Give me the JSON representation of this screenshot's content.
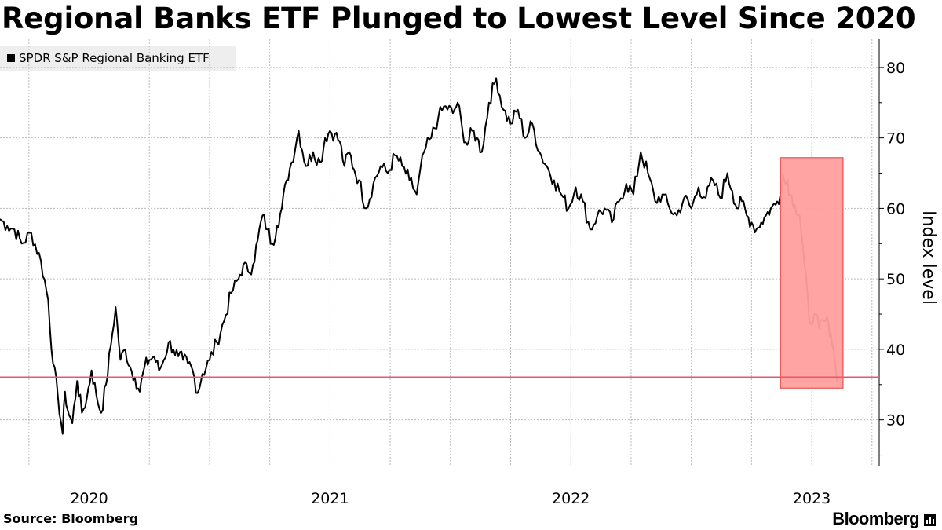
{
  "title": "Regional Banks ETF Plunged to Lowest Level Since 2020",
  "source": "Source: Bloomberg",
  "brand": "Bloomberg",
  "colors": {
    "line": "#000000",
    "threshold": "#e8566b",
    "highlight_fill": "#ff9e9e",
    "highlight_stroke": "#e03a3a",
    "grid": "#bbbbbb"
  },
  "chart_data": {
    "type": "line",
    "title": "Regional Banks ETF Plunged to Lowest Level Since 2020",
    "legend": "top-left",
    "ylabel": "Index level",
    "ylim": [
      23.5,
      84
    ],
    "yticks": [
      30,
      40,
      50,
      60,
      70,
      80
    ],
    "xlim": [
      2019.63,
      2023.28
    ],
    "xtick_labels": [
      {
        "label": "2020",
        "at": 2020.0
      },
      {
        "label": "2021",
        "at": 2021.0
      },
      {
        "label": "2022",
        "at": 2022.0
      },
      {
        "label": "2023",
        "at": 2023.0
      }
    ],
    "grid": true,
    "series": [
      {
        "name": "SPDR S&P Regional Banking ETF",
        "x": [
          2019.63,
          2019.66,
          2019.69,
          2019.72,
          2019.76,
          2019.8,
          2019.83,
          2019.85,
          2019.87,
          2019.89,
          2019.9,
          2019.91,
          2019.93,
          2019.95,
          2019.97,
          2019.99,
          2020.01,
          2020.03,
          2020.05,
          2020.07,
          2020.09,
          2020.11,
          2020.13,
          2020.15,
          2020.17,
          2020.19,
          2020.21,
          2020.23,
          2020.25,
          2020.27,
          2020.29,
          2020.31,
          2020.33,
          2020.35,
          2020.37,
          2020.39,
          2020.41,
          2020.43,
          2020.45,
          2020.47,
          2020.5,
          2020.53,
          2020.56,
          2020.59,
          2020.62,
          2020.64,
          2020.66,
          2020.68,
          2020.7,
          2020.72,
          2020.74,
          2020.76,
          2020.78,
          2020.8,
          2020.82,
          2020.84,
          2020.87,
          2020.9,
          2020.93,
          2020.96,
          2020.98,
          2021.0,
          2021.02,
          2021.04,
          2021.06,
          2021.08,
          2021.1,
          2021.12,
          2021.15,
          2021.18,
          2021.21,
          2021.24,
          2021.27,
          2021.3,
          2021.33,
          2021.36,
          2021.39,
          2021.42,
          2021.45,
          2021.48,
          2021.51,
          2021.53,
          2021.55,
          2021.57,
          2021.59,
          2021.61,
          2021.63,
          2021.66,
          2021.69,
          2021.72,
          2021.75,
          2021.78,
          2021.81,
          2021.84,
          2021.87,
          2021.9,
          2021.93,
          2021.96,
          2021.99,
          2022.02,
          2022.05,
          2022.08,
          2022.11,
          2022.14,
          2022.17,
          2022.2,
          2022.23,
          2022.26,
          2022.29,
          2022.32,
          2022.35,
          2022.38,
          2022.41,
          2022.44,
          2022.47,
          2022.5,
          2022.53,
          2022.56,
          2022.59,
          2022.62,
          2022.65,
          2022.67,
          2022.69,
          2022.71,
          2022.73,
          2022.75,
          2022.77,
          2022.79,
          2022.81,
          2022.83,
          2022.85,
          2022.87,
          2022.88,
          2022.89,
          2022.9,
          2022.91,
          2022.93,
          2022.95,
          2022.97,
          2022.99,
          2023.01,
          2023.03,
          2023.05,
          2023.07,
          2023.08,
          2023.09,
          2023.1,
          2023.11
        ],
        "values": [
          58.5,
          57.5,
          57.0,
          55.0,
          56.5,
          52.5,
          47.0,
          38.0,
          33.5,
          28.0,
          34.0,
          31.5,
          29.5,
          35.5,
          31.0,
          33.0,
          37.0,
          33.5,
          31.0,
          35.0,
          40.5,
          46.0,
          38.5,
          40.0,
          37.5,
          36.0,
          34.0,
          37.5,
          38.5,
          39.0,
          37.0,
          38.5,
          41.0,
          40.0,
          39.0,
          38.5,
          38.0,
          37.0,
          33.8,
          36.5,
          38.5,
          41.0,
          44.0,
          48.0,
          50.0,
          52.0,
          51.0,
          52.0,
          55.5,
          59.0,
          57.0,
          55.0,
          57.5,
          60.0,
          64.0,
          66.5,
          71.0,
          66.0,
          68.0,
          66.5,
          70.0,
          71.0,
          70.5,
          69.5,
          66.0,
          68.0,
          65.5,
          64.0,
          60.0,
          63.5,
          66.0,
          65.0,
          67.5,
          66.0,
          64.0,
          62.0,
          68.0,
          70.0,
          73.0,
          74.5,
          73.5,
          75.0,
          71.0,
          69.0,
          71.0,
          70.0,
          68.0,
          75.0,
          78.5,
          74.0,
          72.0,
          74.0,
          70.0,
          72.0,
          68.0,
          66.0,
          64.0,
          62.0,
          60.0,
          63.0,
          61.0,
          57.0,
          59.0,
          60.0,
          58.0,
          61.0,
          63.5,
          62.0,
          68.0,
          65.0,
          61.0,
          62.0,
          60.0,
          59.0,
          61.5,
          60.0,
          63.0,
          61.5,
          64.0,
          61.5,
          65.0,
          62.5,
          60.0,
          61.0,
          59.0,
          58.0,
          57.0,
          58.0,
          59.0,
          60.0,
          60.5,
          62.0,
          64.8,
          63.5,
          64.0,
          62.0,
          60.5,
          59.0,
          52.0,
          44.0,
          45.0,
          43.0,
          44.0,
          43.5,
          42.0,
          40.0,
          37.0,
          36.0
        ]
      }
    ],
    "reference_line": {
      "y": 36.0
    },
    "highlight": {
      "x": [
        2022.87,
        2023.13
      ],
      "y": [
        34.5,
        67.2
      ]
    }
  }
}
